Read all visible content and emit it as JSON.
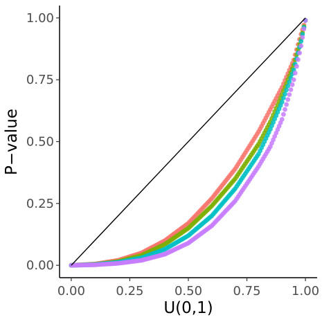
{
  "chart_data": {
    "type": "scatter",
    "title": "",
    "xlabel": "U(0,1)",
    "ylabel": "P−value",
    "xlim": [
      -0.05,
      1.05
    ],
    "ylim": [
      -0.05,
      1.05
    ],
    "x_ticks": [
      0,
      0.25,
      0.5,
      0.75,
      1
    ],
    "x_tick_labels": [
      "0.00",
      "0.25",
      "0.50",
      "0.75",
      "1.00"
    ],
    "y_ticks": [
      0,
      0.25,
      0.5,
      0.75,
      1
    ],
    "y_tick_labels": [
      "0.00",
      "0.25",
      "0.50",
      "0.75",
      "1.00"
    ],
    "grid": false,
    "legend": "none",
    "reference_line": {
      "from": [
        0,
        0
      ],
      "to": [
        1,
        1
      ],
      "color": "#000000"
    },
    "series": [
      {
        "color": "#F8766D",
        "x": [
          0,
          0.1,
          0.2,
          0.3,
          0.4,
          0.5,
          0.6,
          0.7,
          0.8,
          0.85,
          0.9,
          0.95,
          0.98,
          1.0
        ],
        "y": [
          0,
          0.005,
          0.02,
          0.05,
          0.1,
          0.17,
          0.27,
          0.39,
          0.54,
          0.63,
          0.72,
          0.83,
          0.93,
          0.99
        ]
      },
      {
        "color": "#7CAE00",
        "x": [
          0,
          0.1,
          0.2,
          0.3,
          0.4,
          0.5,
          0.6,
          0.7,
          0.8,
          0.85,
          0.9,
          0.95,
          0.98,
          1.0
        ],
        "y": [
          0,
          0.004,
          0.015,
          0.04,
          0.085,
          0.15,
          0.24,
          0.35,
          0.49,
          0.58,
          0.69,
          0.81,
          0.91,
          0.99
        ]
      },
      {
        "color": "#00BFC4",
        "x": [
          0,
          0.1,
          0.2,
          0.3,
          0.4,
          0.5,
          0.6,
          0.7,
          0.8,
          0.85,
          0.9,
          0.95,
          0.98,
          1.0
        ],
        "y": [
          0,
          0.003,
          0.012,
          0.03,
          0.065,
          0.12,
          0.2,
          0.31,
          0.45,
          0.55,
          0.66,
          0.79,
          0.9,
          0.99
        ]
      },
      {
        "color": "#C77CFF",
        "x": [
          0,
          0.1,
          0.2,
          0.3,
          0.4,
          0.5,
          0.6,
          0.7,
          0.8,
          0.85,
          0.9,
          0.95,
          0.98,
          1.0
        ],
        "y": [
          0,
          0.002,
          0.008,
          0.02,
          0.045,
          0.09,
          0.16,
          0.26,
          0.4,
          0.48,
          0.59,
          0.75,
          0.88,
          0.99
        ]
      }
    ]
  }
}
